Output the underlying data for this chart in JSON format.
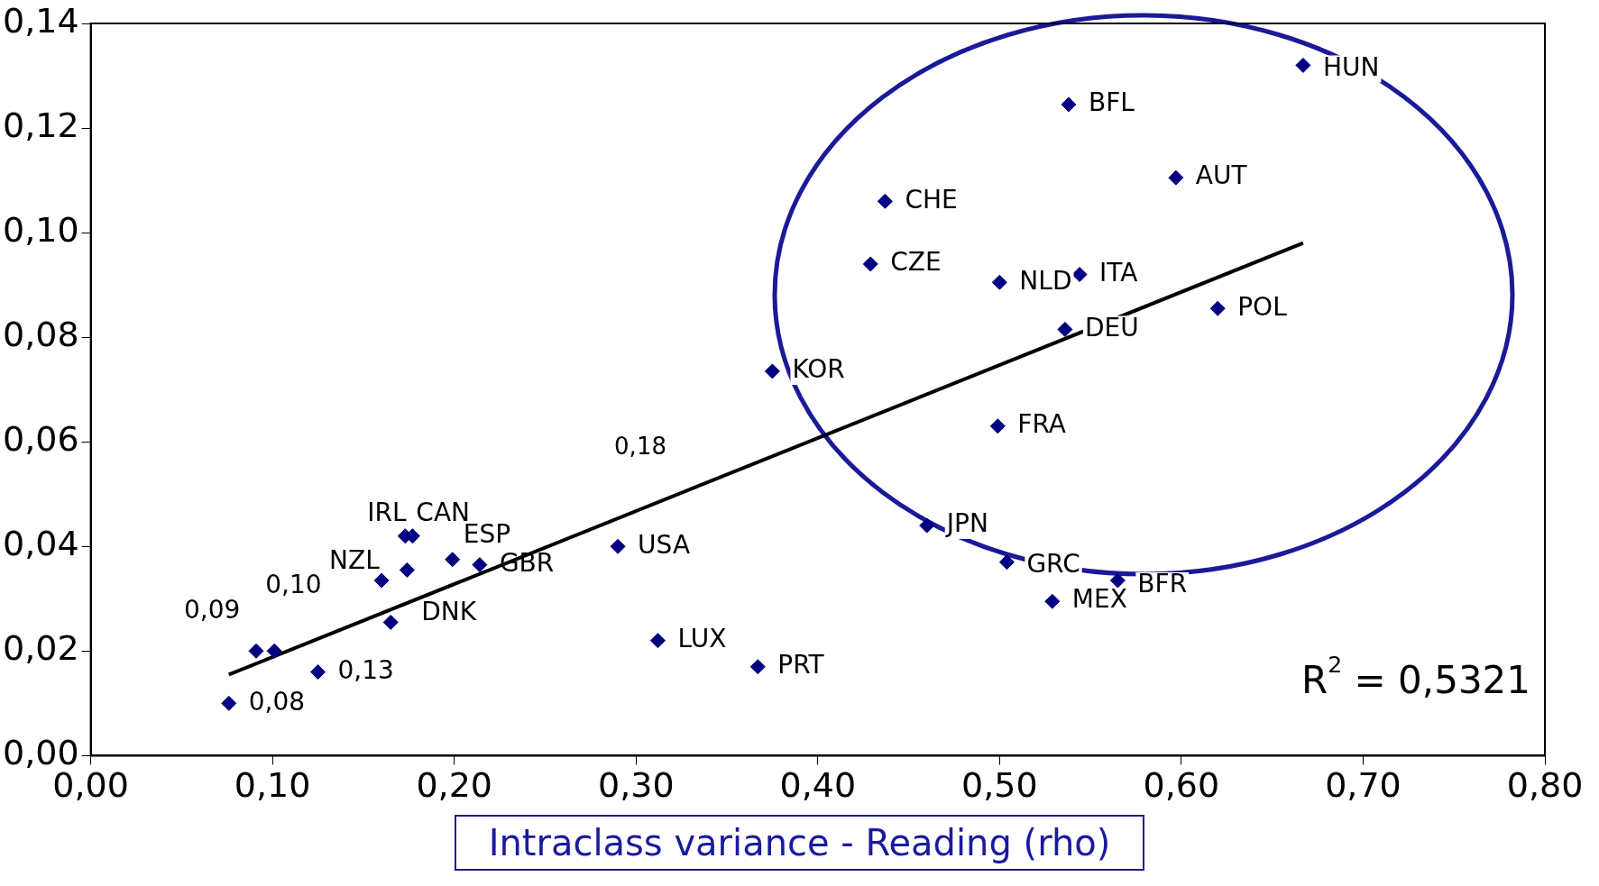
{
  "chart_data": {
    "type": "scatter",
    "xlabel": "Intraclass variance - Reading (rho)",
    "xlim": [
      0,
      0.8
    ],
    "xticks": [
      {
        "value": 0,
        "label": "0,00"
      },
      {
        "value": 0.1,
        "label": "0,10"
      },
      {
        "value": 0.2,
        "label": "0,20"
      },
      {
        "value": 0.3,
        "label": "0,30"
      },
      {
        "value": 0.4,
        "label": "0,40"
      },
      {
        "value": 0.5,
        "label": "0,50"
      },
      {
        "value": 0.6,
        "label": "0,60"
      },
      {
        "value": 0.7,
        "label": "0,70"
      },
      {
        "value": 0.8,
        "label": "0,80"
      }
    ],
    "ylim": [
      0,
      0.14
    ],
    "yticks": [
      {
        "value": 0,
        "label": "0,00"
      },
      {
        "value": 0.02,
        "label": "0,02"
      },
      {
        "value": 0.04,
        "label": "0,04"
      },
      {
        "value": 0.06,
        "label": "0,06"
      },
      {
        "value": 0.08,
        "label": "0,08"
      },
      {
        "value": 0.1,
        "label": "0,10"
      },
      {
        "value": 0.12,
        "label": "0,12"
      },
      {
        "value": 0.14,
        "label": "0,14"
      }
    ],
    "legend": false,
    "series": [
      {
        "marker": "diamond",
        "color": "#000080",
        "x": [
          0.667,
          0.538,
          0.597,
          0.437,
          0.429,
          0.5,
          0.544,
          0.62,
          0.536,
          0.375,
          0.499,
          0.46,
          0.504,
          0.565,
          0.529,
          0.29,
          0.312,
          0.367,
          0.173,
          0.177,
          0.199,
          0.214,
          0.16,
          0.174,
          0.165,
          0.091,
          0.101,
          0.125,
          0.076
        ],
        "values": [
          0.132,
          0.1245,
          0.1105,
          0.106,
          0.094,
          0.0905,
          0.092,
          0.0855,
          0.0815,
          0.0735,
          0.063,
          0.044,
          0.037,
          0.0335,
          0.0295,
          0.04,
          0.022,
          0.017,
          0.042,
          0.042,
          0.0375,
          0.0365,
          0.0335,
          0.0355,
          0.0255,
          0.02,
          0.02,
          0.016,
          0.01
        ]
      },
      {
        "type": "line",
        "color": "#000000",
        "x": [
          0.076,
          0.667
        ],
        "values": [
          0.0155,
          0.098
        ]
      }
    ],
    "annotations": [
      {
        "text": "HUN",
        "x": 0.667,
        "y": 0.132
      },
      {
        "text": "BFL",
        "x": 0.538,
        "y": 0.1245
      },
      {
        "text": "AUT",
        "x": 0.597,
        "y": 0.1105
      },
      {
        "text": "CHE",
        "x": 0.437,
        "y": 0.106
      },
      {
        "text": "CZE",
        "x": 0.429,
        "y": 0.094
      },
      {
        "text": "NLD",
        "x": 0.5,
        "y": 0.0905
      },
      {
        "text": "ITA",
        "x": 0.544,
        "y": 0.092
      },
      {
        "text": "POL",
        "x": 0.62,
        "y": 0.0855
      },
      {
        "text": "DEU",
        "x": 0.536,
        "y": 0.0815
      },
      {
        "text": "KOR",
        "x": 0.375,
        "y": 0.0735
      },
      {
        "text": "FRA",
        "x": 0.499,
        "y": 0.063
      },
      {
        "text": "JPN",
        "x": 0.46,
        "y": 0.044
      },
      {
        "text": "GRC",
        "x": 0.504,
        "y": 0.037
      },
      {
        "text": "BFR",
        "x": 0.565,
        "y": 0.0335
      },
      {
        "text": "MEX",
        "x": 0.529,
        "y": 0.0295
      },
      {
        "text": "USA",
        "x": 0.29,
        "y": 0.04
      },
      {
        "text": "LUX",
        "x": 0.312,
        "y": 0.022
      },
      {
        "text": "PRT",
        "x": 0.367,
        "y": 0.017
      },
      {
        "text": "IRL",
        "x": 0.173,
        "y": 0.042
      },
      {
        "text": "CAN",
        "x": 0.177,
        "y": 0.042
      },
      {
        "text": "ESP",
        "x": 0.199,
        "y": 0.0375
      },
      {
        "text": "GBR",
        "x": 0.214,
        "y": 0.0365
      },
      {
        "text": "NZL",
        "x": 0.16,
        "y": 0.0335
      },
      {
        "text": "DNK",
        "x": 0.174,
        "y": 0.0355
      },
      {
        "text": "0,09",
        "x": 0.091,
        "y": 0.02
      },
      {
        "text": "0,10",
        "x": 0.101,
        "y": 0.02
      },
      {
        "text": "0,13",
        "x": 0.125,
        "y": 0.016
      },
      {
        "text": "0,08",
        "x": 0.076,
        "y": 0.01
      },
      "0,18",
      "R$^{2}$ = 0,5321"
    ]
  }
}
